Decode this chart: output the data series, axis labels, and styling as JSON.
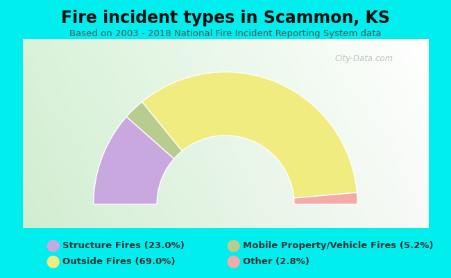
{
  "title": "Fire incident types in Scammon, KS",
  "subtitle": "Based on 2003 - 2018 National Fire Incident Reporting System data",
  "background_color": "#00EEEE",
  "chart_bg_color": "#ddeedd",
  "watermark": "City-Data.com",
  "categories": [
    "Structure Fires (23.0%)",
    "Outside Fires (69.0%)",
    "Mobile Property/Vehicle Fires (5.2%)",
    "Other (2.8%)"
  ],
  "values": [
    23.0,
    69.0,
    5.2,
    2.8
  ],
  "colors": [
    "#c9a8e0",
    "#f0ec80",
    "#b8cc90",
    "#f5aaaa"
  ],
  "legend_colors": [
    "#c9a8e0",
    "#f0ec80",
    "#b8cc90",
    "#f5aaaa"
  ],
  "title_fontsize": 17,
  "subtitle_fontsize": 9.5,
  "title_color": "#111111",
  "subtitle_color": "#555555",
  "legend_fontsize": 9.5,
  "legend_text_color": "#333333",
  "outer_r": 1.0,
  "inner_r": 0.52
}
